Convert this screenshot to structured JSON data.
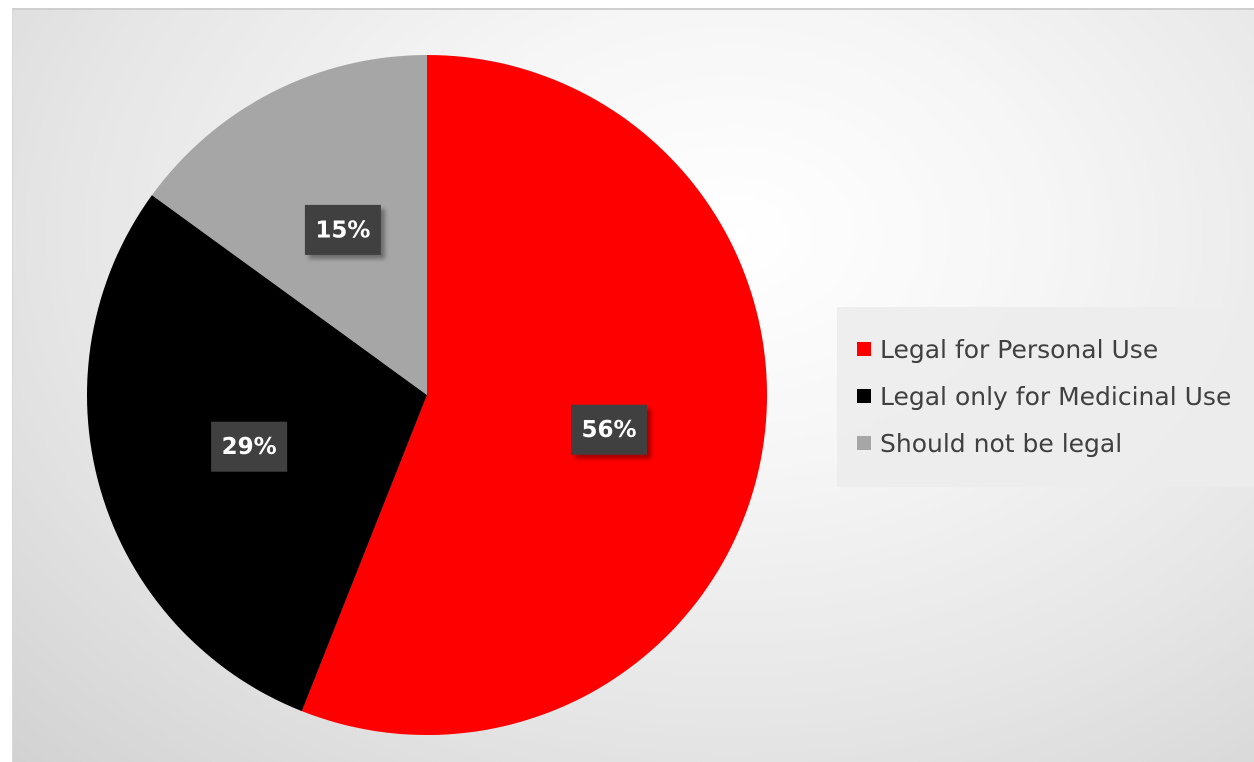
{
  "chart_data": {
    "type": "pie",
    "title": "",
    "slices": [
      {
        "label": "Legal for Personal Use",
        "value": 56,
        "display": "56%",
        "color": "#ff0000"
      },
      {
        "label": "Legal only for Medicinal Use",
        "value": 29,
        "display": "29%",
        "color": "#000000"
      },
      {
        "label": "Should not be legal",
        "value": 15,
        "display": "15%",
        "color": "#a6a6a6"
      }
    ],
    "start_angle": "12 o'clock, clockwise",
    "legend_position": "right",
    "data_label_style": "white bold text on dark gray box"
  }
}
